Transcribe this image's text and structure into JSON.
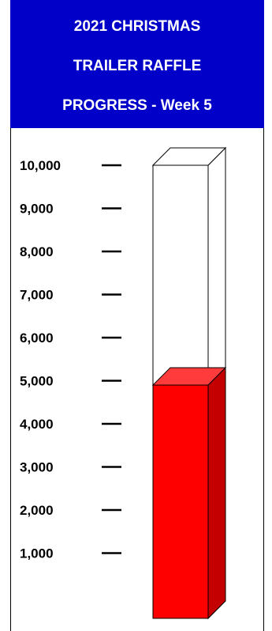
{
  "title": {
    "line1": "2021 CHRISTMAS",
    "line2": "TRAILER RAFFLE",
    "line3": "PROGRESS - Week 5"
  },
  "colors": {
    "header_bg": "#0000c8",
    "header_text": "#ffffff",
    "fill_front": "#ff0000",
    "fill_top": "#ff3b3b",
    "fill_side": "#c40000",
    "empty": "#ffffff",
    "stroke": "#000000"
  },
  "chart_data": {
    "type": "bar",
    "categories": [
      ""
    ],
    "values": [
      4900
    ],
    "goal": 10000,
    "ylim": [
      0,
      10000
    ],
    "yticks": [
      "10,000",
      "9,000",
      "8,000",
      "7,000",
      "6,000",
      "5,000",
      "4,000",
      "3,000",
      "2,000",
      "1,000"
    ],
    "ytick_values": [
      10000,
      9000,
      8000,
      7000,
      6000,
      5000,
      4000,
      3000,
      2000,
      1000
    ],
    "title": "2021 CHRISTMAS TRAILER RAFFLE PROGRESS - Week 5",
    "grid": false,
    "style": "3d-thermometer-bar"
  }
}
